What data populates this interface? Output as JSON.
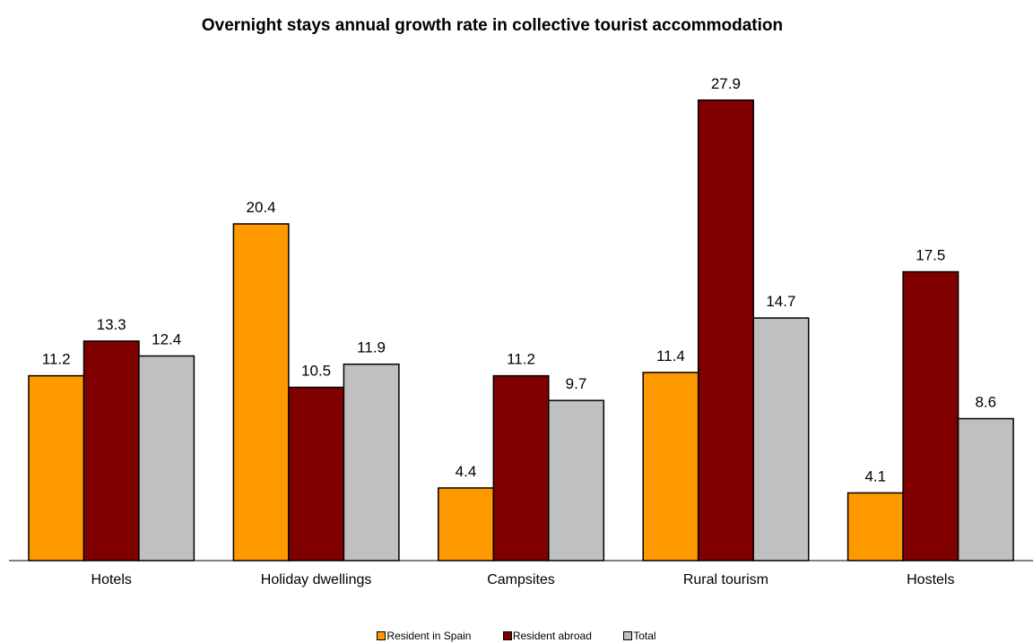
{
  "chart_data": {
    "type": "bar",
    "title": "Overnight stays annual growth rate in collective tourist accommodation",
    "categories": [
      "Hotels",
      "Holiday dwellings",
      "Campsites",
      "Rural tourism",
      "Hostels"
    ],
    "series": [
      {
        "name": "Resident in Spain",
        "color": "#FF9900",
        "values": [
          11.2,
          20.4,
          4.4,
          11.4,
          4.1
        ]
      },
      {
        "name": "Resident abroad",
        "color": "#800000",
        "values": [
          13.3,
          10.5,
          11.2,
          27.9,
          17.5
        ]
      },
      {
        "name": "Total",
        "color": "#C0C0C0",
        "values": [
          12.4,
          11.9,
          9.7,
          14.7,
          8.6
        ]
      }
    ],
    "ylim": [
      0,
      30
    ],
    "grid": false,
    "legend_position": "bottom",
    "data_labels": true
  }
}
